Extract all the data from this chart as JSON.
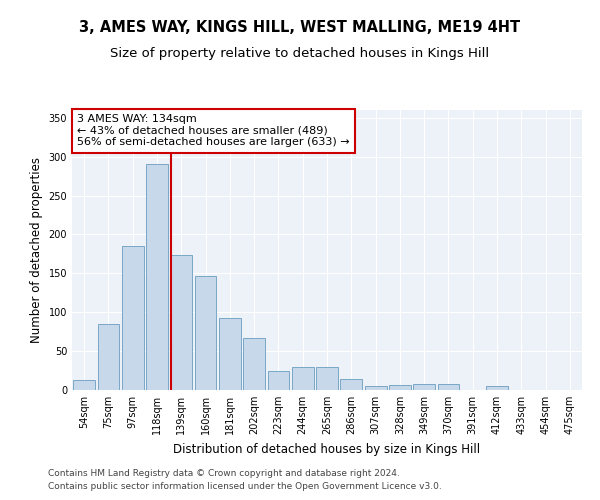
{
  "title": "3, AMES WAY, KINGS HILL, WEST MALLING, ME19 4HT",
  "subtitle": "Size of property relative to detached houses in Kings Hill",
  "xlabel": "Distribution of detached houses by size in Kings Hill",
  "ylabel": "Number of detached properties",
  "bar_color": "#c8d8eb",
  "bar_edge_color": "#6a9dbf",
  "background_color": "#edf2f9",
  "grid_color": "#ffffff",
  "categories": [
    "54sqm",
    "75sqm",
    "97sqm",
    "118sqm",
    "139sqm",
    "160sqm",
    "181sqm",
    "202sqm",
    "223sqm",
    "244sqm",
    "265sqm",
    "286sqm",
    "307sqm",
    "328sqm",
    "349sqm",
    "370sqm",
    "391sqm",
    "412sqm",
    "433sqm",
    "454sqm",
    "475sqm"
  ],
  "values": [
    13,
    85,
    185,
    290,
    173,
    147,
    92,
    67,
    25,
    30,
    30,
    14,
    5,
    7,
    8,
    8,
    0,
    5,
    0,
    0,
    0
  ],
  "ylim": [
    0,
    360
  ],
  "yticks": [
    0,
    50,
    100,
    150,
    200,
    250,
    300,
    350
  ],
  "vline_label": "3 AMES WAY: 134sqm",
  "annotation_line1": "← 43% of detached houses are smaller (489)",
  "annotation_line2": "56% of semi-detached houses are larger (633) →",
  "footer1": "Contains HM Land Registry data © Crown copyright and database right 2024.",
  "footer2": "Contains public sector information licensed under the Open Government Licence v3.0.",
  "title_fontsize": 10.5,
  "subtitle_fontsize": 9.5,
  "axis_label_fontsize": 8.5,
  "tick_fontsize": 7,
  "annotation_fontsize": 8,
  "footer_fontsize": 6.5
}
